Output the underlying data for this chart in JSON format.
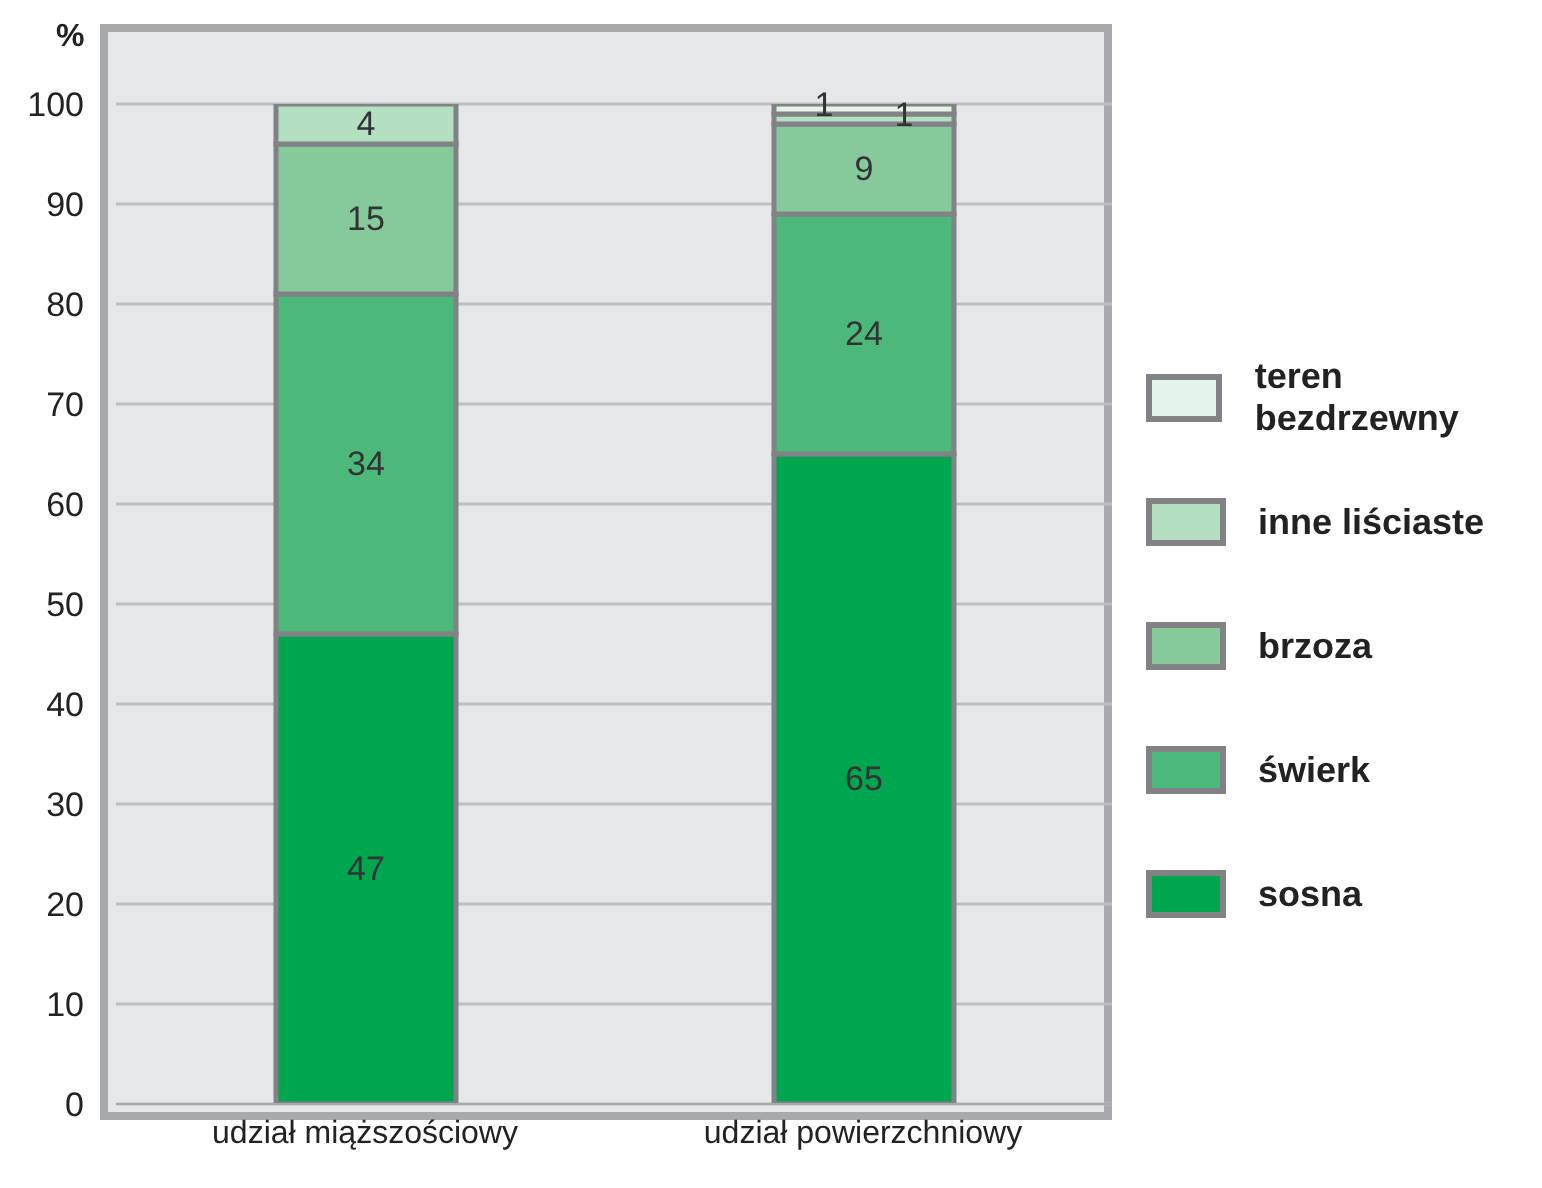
{
  "chart_data": {
    "type": "bar",
    "ylabel": "%",
    "categories": [
      "udział miąższościowy",
      "udział powierzchniowy"
    ],
    "series": [
      {
        "name": "sosna",
        "color": "#00a550",
        "values": [
          47,
          65
        ]
      },
      {
        "name": "świerk",
        "color": "#4cb97b",
        "values": [
          34,
          24
        ]
      },
      {
        "name": "brzoza",
        "color": "#86c99b",
        "values": [
          15,
          9
        ]
      },
      {
        "name": "inne liściaste",
        "color": "#b4dfc1",
        "values": [
          4,
          1
        ]
      },
      {
        "name": "teren bezdrzewny",
        "color": "#e4f4e8",
        "values": [
          null,
          1
        ]
      }
    ],
    "stacked": true,
    "ylim": [
      0,
      100
    ],
    "yticks": [
      0,
      10,
      20,
      30,
      40,
      50,
      60,
      70,
      80,
      90,
      100
    ],
    "grid": "y",
    "legend": "right",
    "data_labels": true
  }
}
